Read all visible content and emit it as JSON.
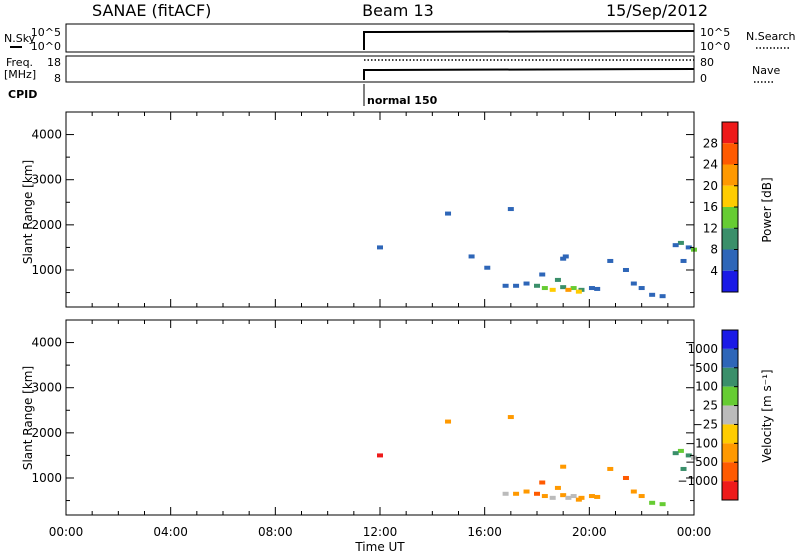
{
  "header": {
    "radar": "SANAE (fitACF)",
    "beam": "Beam 13",
    "date": "15/Sep/2012"
  },
  "panels": {
    "nsky": {
      "label": "N.Sky",
      "left_ticks": [
        "10^5",
        "10^0"
      ],
      "right_label": "N.Search",
      "right_ticks": [
        "10^5",
        "10^0"
      ]
    },
    "freq": {
      "label_line1": "Freq.",
      "label_line2": "[MHz]",
      "left_ticks": [
        "18",
        "8"
      ],
      "right_label": "Nave",
      "right_ticks": [
        "80",
        "0"
      ]
    },
    "cpid": {
      "label": "CPID",
      "mode_label": "normal 150"
    }
  },
  "x_axis": {
    "label": "Time UT",
    "ticks": [
      "00:00",
      "04:00",
      "08:00",
      "12:00",
      "16:00",
      "20:00",
      "00:00"
    ]
  },
  "chart_data": [
    {
      "type": "heatmap",
      "name": "power",
      "ylabel": "Slant Range [km]",
      "yticks": [
        "1000",
        "2000",
        "3000",
        "4000"
      ],
      "ylim": [
        180,
        4500
      ],
      "xlim_hours": [
        0,
        24
      ],
      "colorbar_label": "Power [dB]",
      "colorbar_ticks": [
        "4",
        "8",
        "12",
        "16",
        "20",
        "24",
        "28"
      ],
      "colorbar_colors": [
        "#1a1ae6",
        "#2e66b8",
        "#3a8f6a",
        "#66cc33",
        "#ffcc00",
        "#ff9900",
        "#ff5a00",
        "#ee1a1a"
      ],
      "cells": [
        [
          14.6,
          2250,
          1
        ],
        [
          17.0,
          2350,
          1
        ],
        [
          12.0,
          1500,
          1
        ],
        [
          15.5,
          1300,
          1
        ],
        [
          16.1,
          1050,
          1
        ],
        [
          16.8,
          650,
          1
        ],
        [
          17.2,
          650,
          1
        ],
        [
          17.6,
          700,
          1
        ],
        [
          18.0,
          650,
          2
        ],
        [
          18.3,
          600,
          3
        ],
        [
          18.6,
          560,
          4
        ],
        [
          19.0,
          620,
          2
        ],
        [
          19.4,
          600,
          3
        ],
        [
          19.7,
          560,
          2
        ],
        [
          20.1,
          600,
          1
        ],
        [
          18.2,
          900,
          1
        ],
        [
          18.8,
          780,
          2
        ],
        [
          19.2,
          560,
          5
        ],
        [
          19.6,
          520,
          4
        ],
        [
          20.3,
          580,
          1
        ],
        [
          19.1,
          1300,
          1
        ],
        [
          20.8,
          1200,
          1
        ],
        [
          21.4,
          1000,
          1
        ],
        [
          21.7,
          700,
          1
        ],
        [
          22.0,
          600,
          1
        ],
        [
          22.4,
          450,
          1
        ],
        [
          22.8,
          420,
          1
        ],
        [
          23.5,
          1600,
          2
        ],
        [
          23.8,
          1500,
          1
        ],
        [
          24.0,
          1450,
          3
        ],
        [
          23.3,
          1550,
          1
        ],
        [
          23.6,
          1200,
          1
        ],
        [
          19.0,
          1250,
          1
        ]
      ]
    },
    {
      "type": "heatmap",
      "name": "velocity",
      "ylabel": "Slant Range [km]",
      "yticks": [
        "1000",
        "2000",
        "3000",
        "4000"
      ],
      "ylim": [
        180,
        4500
      ],
      "xlim_hours": [
        0,
        24
      ],
      "colorbar_label": "Velocity [m s⁻¹]",
      "colorbar_ticks": [
        "1000",
        "500",
        "100",
        "25",
        "−25",
        "−100",
        "−500",
        "−1000"
      ],
      "colorbar_colors": [
        "#1a1ae6",
        "#2e66b8",
        "#3a8f6a",
        "#66cc33",
        "#bbbbbb",
        "#ffcc00",
        "#ff9900",
        "#ff5a00",
        "#ee1a1a"
      ],
      "cells": [
        [
          14.6,
          2250,
          6
        ],
        [
          17.0,
          2350,
          6
        ],
        [
          12.0,
          1500,
          8
        ],
        [
          19.0,
          1250,
          6
        ],
        [
          16.8,
          650,
          4
        ],
        [
          17.2,
          650,
          6
        ],
        [
          17.6,
          700,
          6
        ],
        [
          18.0,
          650,
          7
        ],
        [
          18.3,
          600,
          6
        ],
        [
          18.6,
          560,
          4
        ],
        [
          19.0,
          620,
          6
        ],
        [
          19.4,
          600,
          4
        ],
        [
          19.7,
          560,
          6
        ],
        [
          20.1,
          600,
          6
        ],
        [
          18.2,
          900,
          7
        ],
        [
          18.8,
          780,
          6
        ],
        [
          19.2,
          560,
          4
        ],
        [
          19.6,
          520,
          6
        ],
        [
          20.3,
          580,
          6
        ],
        [
          20.8,
          1200,
          6
        ],
        [
          21.4,
          1000,
          7
        ],
        [
          21.7,
          700,
          6
        ],
        [
          22.0,
          600,
          6
        ],
        [
          22.4,
          450,
          3
        ],
        [
          22.8,
          420,
          3
        ],
        [
          23.5,
          1600,
          3
        ],
        [
          23.8,
          1500,
          2
        ],
        [
          24.0,
          1450,
          4
        ],
        [
          23.3,
          1550,
          2
        ],
        [
          23.6,
          1200,
          2
        ]
      ]
    }
  ]
}
